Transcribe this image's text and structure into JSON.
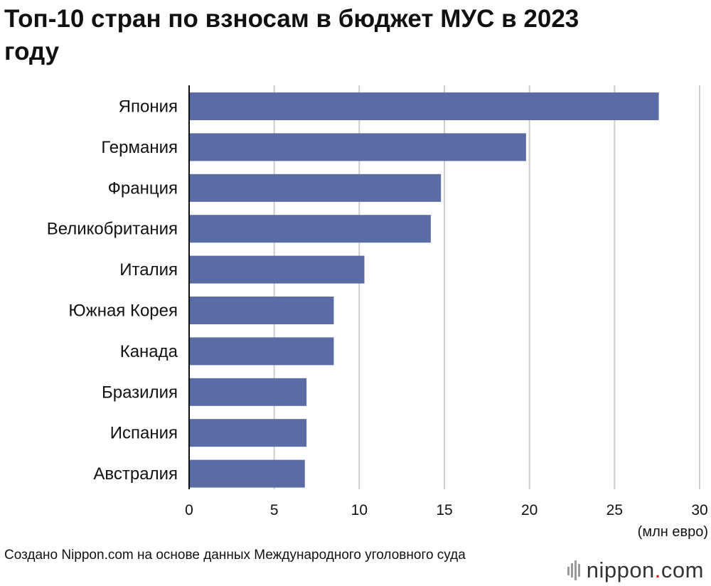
{
  "chart_data": {
    "type": "bar",
    "orientation": "horizontal",
    "title": "Топ-10 стран по взносам в бюджет МУС в 2023 году",
    "categories": [
      "Япония",
      "Германия",
      "Франция",
      "Великобритания",
      "Италия",
      "Южная Корея",
      "Канада",
      "Бразилия",
      "Испания",
      "Австралия"
    ],
    "values": [
      27.6,
      19.8,
      14.8,
      14.2,
      10.3,
      8.5,
      8.5,
      6.9,
      6.9,
      6.8
    ],
    "xlim": [
      0,
      30
    ],
    "xticks": [
      0,
      5,
      10,
      15,
      20,
      25,
      30
    ],
    "xlabel": "(млн евро)",
    "ylabel": "",
    "grid": true,
    "bar_color": "#5a6ca6",
    "grid_color": "#cccccc"
  },
  "footer": {
    "source": "Создано Nippon.com на основе данных Международного уголовного суда",
    "logo_name": "nippon",
    "logo_dot": ".",
    "logo_suffix": "com",
    "logo_icon": "nippon-flower-icon",
    "logo_dot_color": "#e60012"
  }
}
